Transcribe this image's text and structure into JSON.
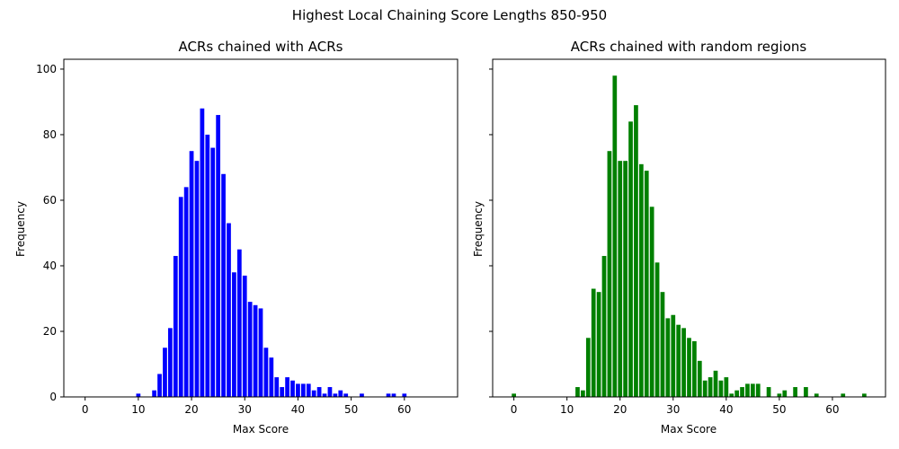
{
  "figure_title": "Highest Local Chaining Score Lengths 850-950",
  "chart_data": [
    {
      "type": "bar",
      "title": "ACRs chained with ACRs",
      "xlabel": "Max Score",
      "ylabel": "Frequency",
      "xlim": [
        -4,
        70
      ],
      "ylim": [
        0,
        103
      ],
      "xticks": [
        0,
        10,
        20,
        30,
        40,
        50,
        60
      ],
      "yticks": [
        0,
        20,
        40,
        60,
        80,
        100
      ],
      "color": "#0000ff",
      "x": [
        10,
        13,
        14,
        15,
        16,
        17,
        18,
        19,
        20,
        21,
        22,
        23,
        24,
        25,
        26,
        27,
        28,
        29,
        30,
        31,
        32,
        33,
        34,
        35,
        36,
        37,
        38,
        39,
        40,
        41,
        42,
        43,
        44,
        45,
        46,
        47,
        48,
        49,
        52,
        57,
        58,
        60
      ],
      "values": [
        1,
        2,
        7,
        15,
        21,
        43,
        61,
        64,
        75,
        72,
        88,
        80,
        76,
        86,
        68,
        53,
        38,
        45,
        37,
        29,
        28,
        27,
        15,
        12,
        6,
        3,
        6,
        5,
        4,
        4,
        4,
        2,
        3,
        1,
        3,
        1,
        2,
        1,
        1,
        1,
        1,
        1
      ]
    },
    {
      "type": "bar",
      "title": "ACRs chained with random regions",
      "xlabel": "Max Score",
      "ylabel": "Frequency",
      "xlim": [
        -4,
        70
      ],
      "ylim": [
        0,
        103
      ],
      "xticks": [
        0,
        10,
        20,
        30,
        40,
        50,
        60
      ],
      "yticks": [
        0,
        20,
        40,
        60,
        80,
        100
      ],
      "shared_y": true,
      "color": "#008000",
      "x": [
        0,
        12,
        13,
        14,
        15,
        16,
        17,
        18,
        19,
        20,
        21,
        22,
        23,
        24,
        25,
        26,
        27,
        28,
        29,
        30,
        31,
        32,
        33,
        34,
        35,
        36,
        37,
        38,
        39,
        40,
        41,
        42,
        43,
        44,
        45,
        46,
        48,
        50,
        51,
        53,
        55,
        57,
        62,
        66
      ],
      "values": [
        1,
        3,
        2,
        18,
        33,
        32,
        43,
        75,
        98,
        72,
        72,
        84,
        89,
        71,
        69,
        58,
        41,
        32,
        24,
        25,
        22,
        21,
        18,
        17,
        11,
        5,
        6,
        8,
        5,
        6,
        1,
        2,
        3,
        4,
        4,
        4,
        3,
        1,
        2,
        3,
        3,
        1,
        1,
        1
      ]
    }
  ]
}
